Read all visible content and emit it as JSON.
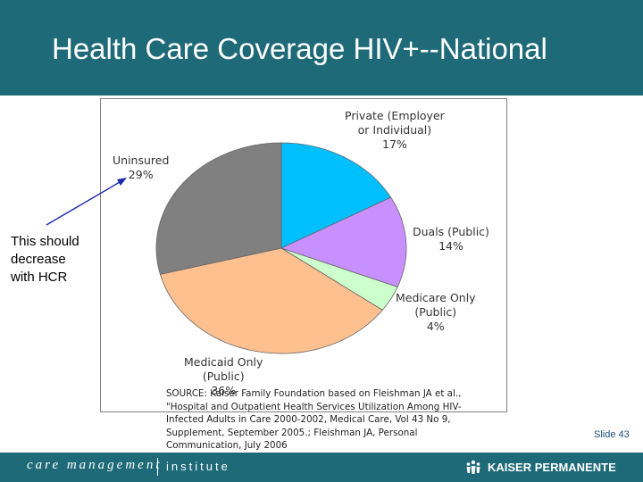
{
  "header": {
    "title": "Health Care Coverage HIV+--National"
  },
  "chart_data": {
    "type": "pie",
    "categories": [
      "Private (Employer or Individual)",
      "Duals (Public)",
      "Medicare Only (Public)",
      "Medicaid Only (Public)",
      "Uninsured"
    ],
    "values": [
      17,
      14,
      4,
      36,
      29
    ],
    "labels": [
      {
        "lines": [
          "Private (Employer",
          "or Individual)",
          "17%"
        ]
      },
      {
        "lines": [
          "Duals (Public)",
          "14%"
        ]
      },
      {
        "lines": [
          "Medicare Only",
          "(Public)",
          "4%"
        ]
      },
      {
        "lines": [
          "Medicaid Only",
          "(Public)",
          "36%"
        ]
      },
      {
        "lines": [
          "Uninsured",
          "29%"
        ]
      }
    ],
    "colors": [
      "#00bfff",
      "#c890ff",
      "#ccffcc",
      "#ffc090",
      "#808080"
    ]
  },
  "annotation": {
    "lines": [
      "This should",
      "decrease",
      "with HCR"
    ]
  },
  "source": "SOURCE: Kaiser Family Foundation based on Fleishman JA et al., \"Hospital and Outpatient Health Services Utilization Among HIV-Infected Adults in Care 2000-2002, Medical Care, Vol 43 No 9, Supplement, September 2005.; Fleishman JA, Personal Communication, July 2006",
  "slide_number": "Slide 43",
  "footer": {
    "brand_left": "care management",
    "brand_right": "institute",
    "partner": "KAISER PERMANENTE"
  }
}
